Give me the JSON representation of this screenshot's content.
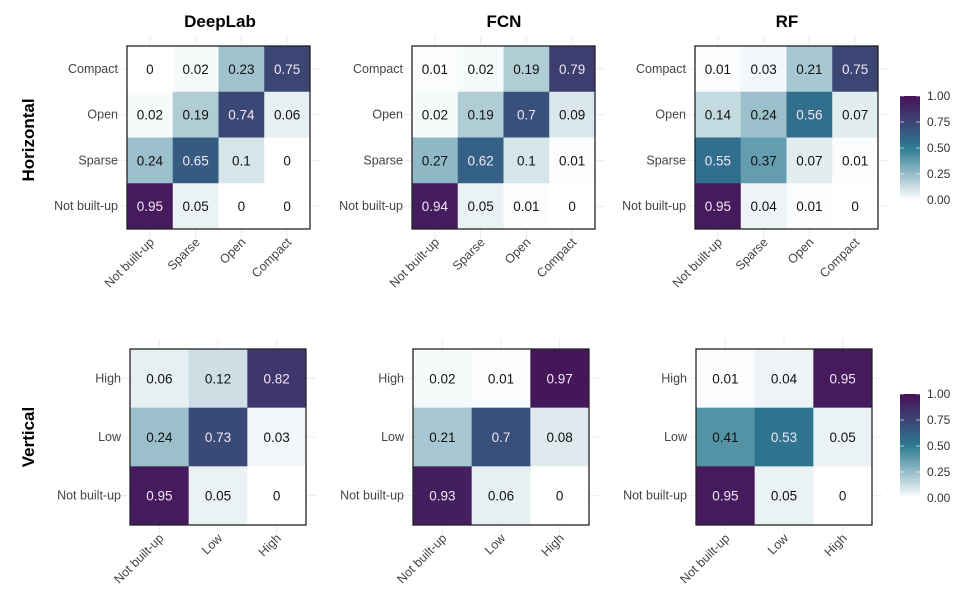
{
  "chart_data": {
    "type": "heatmap",
    "figure_rows": [
      {
        "row_label": "Horizontal",
        "categories": [
          "Not built-up",
          "Sparse",
          "Open",
          "Compact"
        ],
        "panels": [
          {
            "title": "DeepLab",
            "y_categories_top_to_bottom": [
              "Compact",
              "Open",
              "Sparse",
              "Not built-up"
            ],
            "x_categories": [
              "Not built-up",
              "Sparse",
              "Open",
              "Compact"
            ],
            "values": [
              [
                "0",
                "0.02",
                "0.23",
                "0.75"
              ],
              [
                "0.02",
                "0.19",
                "0.74",
                "0.06"
              ],
              [
                "0.24",
                "0.65",
                "0.1",
                "0"
              ],
              [
                "0.95",
                "0.05",
                "0",
                "0"
              ]
            ]
          },
          {
            "title": "FCN",
            "y_categories_top_to_bottom": [
              "Compact",
              "Open",
              "Sparse",
              "Not built-up"
            ],
            "x_categories": [
              "Not built-up",
              "Sparse",
              "Open",
              "Compact"
            ],
            "values": [
              [
                "0.01",
                "0.02",
                "0.19",
                "0.79"
              ],
              [
                "0.02",
                "0.19",
                "0.7",
                "0.09"
              ],
              [
                "0.27",
                "0.62",
                "0.1",
                "0.01"
              ],
              [
                "0.94",
                "0.05",
                "0.01",
                "0"
              ]
            ]
          },
          {
            "title": "RF",
            "y_categories_top_to_bottom": [
              "Compact",
              "Open",
              "Sparse",
              "Not built-up"
            ],
            "x_categories": [
              "Not built-up",
              "Sparse",
              "Open",
              "Compact"
            ],
            "values": [
              [
                "0.01",
                "0.03",
                "0.21",
                "0.75"
              ],
              [
                "0.14",
                "0.24",
                "0.56",
                "0.07"
              ],
              [
                "0.55",
                "0.37",
                "0.07",
                "0.01"
              ],
              [
                "0.95",
                "0.04",
                "0.01",
                "0"
              ]
            ]
          }
        ],
        "colorbar": {
          "ticks": [
            "1.00",
            "0.75",
            "0.50",
            "0.25",
            "0.00"
          ],
          "range": [
            0,
            1
          ]
        }
      },
      {
        "row_label": "Vertical",
        "categories": [
          "Not built-up",
          "Low",
          "High"
        ],
        "panels": [
          {
            "title": "DeepLab",
            "y_categories_top_to_bottom": [
              "High",
              "Low",
              "Not built-up"
            ],
            "x_categories": [
              "Not built-up",
              "Low",
              "High"
            ],
            "values": [
              [
                "0.06",
                "0.12",
                "0.82"
              ],
              [
                "0.24",
                "0.73",
                "0.03"
              ],
              [
                "0.95",
                "0.05",
                "0"
              ]
            ]
          },
          {
            "title": "FCN",
            "y_categories_top_to_bottom": [
              "High",
              "Low",
              "Not built-up"
            ],
            "x_categories": [
              "Not built-up",
              "Low",
              "High"
            ],
            "values": [
              [
                "0.02",
                "0.01",
                "0.97"
              ],
              [
                "0.21",
                "0.7",
                "0.08"
              ],
              [
                "0.93",
                "0.06",
                "0"
              ]
            ]
          },
          {
            "title": "RF",
            "y_categories_top_to_bottom": [
              "High",
              "Low",
              "Not built-up"
            ],
            "x_categories": [
              "Not built-up",
              "Low",
              "High"
            ],
            "values": [
              [
                "0.01",
                "0.04",
                "0.95"
              ],
              [
                "0.41",
                "0.53",
                "0.05"
              ],
              [
                "0.95",
                "0.05",
                "0"
              ]
            ]
          }
        ],
        "colorbar": {
          "ticks": [
            "1.00",
            "0.75",
            "0.50",
            "0.25",
            "0.00"
          ],
          "range": [
            0,
            1
          ]
        }
      }
    ],
    "column_titles": [
      "DeepLab",
      "FCN",
      "RF"
    ],
    "colorscale": [
      "#ffffff",
      "#2e7b93",
      "#481057"
    ],
    "legend_position": "right",
    "xlabel": "",
    "ylabel": ""
  }
}
